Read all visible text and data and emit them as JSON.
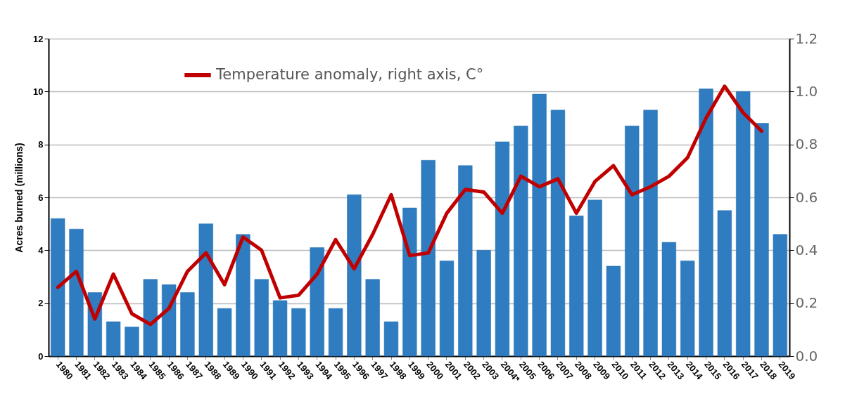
{
  "chart_data": {
    "type": "bar",
    "ylabel": "Acres burned (millions)",
    "categories": [
      "1980",
      "1981",
      "1982",
      "1983",
      "1984",
      "1985",
      "1986",
      "1987",
      "1988",
      "1989",
      "1990",
      "1991",
      "1992",
      "1993",
      "1994",
      "1995",
      "1996",
      "1997",
      "1998",
      "1999",
      "2000",
      "2001",
      "2002",
      "2003",
      "2004*",
      "2005",
      "2006",
      "2007",
      "2008",
      "2009",
      "2010",
      "2011",
      "2012",
      "2013",
      "2014",
      "2015",
      "2016",
      "2017",
      "2018",
      "2019"
    ],
    "series": [
      {
        "color": "#2f7dc0",
        "values": [
          5.2,
          4.8,
          2.4,
          1.3,
          1.1,
          2.9,
          2.7,
          2.4,
          5.0,
          1.8,
          4.6,
          2.9,
          2.1,
          1.8,
          4.1,
          1.8,
          6.1,
          2.9,
          1.3,
          5.6,
          7.4,
          3.6,
          7.2,
          4.0,
          8.1,
          8.7,
          9.9,
          9.3,
          5.3,
          5.9,
          3.4,
          8.7,
          9.3,
          4.3,
          3.6,
          10.1,
          5.5,
          10.0,
          8.8,
          4.6
        ]
      },
      {
        "type": "line",
        "axis": "y2",
        "name": "Temperature anomaly, right axis, C°",
        "color": "#c00000",
        "values": [
          0.26,
          0.32,
          0.14,
          0.31,
          0.16,
          0.12,
          0.18,
          0.32,
          0.39,
          0.27,
          0.45,
          0.4,
          0.22,
          0.23,
          0.31,
          0.44,
          0.33,
          0.46,
          0.61,
          0.38,
          0.39,
          0.54,
          0.63,
          0.62,
          0.54,
          0.68,
          0.64,
          0.67,
          0.54,
          0.66,
          0.72,
          0.61,
          0.64,
          0.68,
          0.75,
          0.9,
          1.02,
          0.92,
          0.85,
          null
        ]
      }
    ],
    "ylim": [
      0,
      12
    ],
    "yticks": [
      0,
      2,
      4,
      6,
      8,
      10,
      12
    ],
    "y2lim": [
      0,
      1.2
    ],
    "y2ticks": [
      {
        "value": 0,
        "label": "0.0"
      },
      {
        "value": 0.2,
        "label": "0.2"
      },
      {
        "value": 0.4,
        "label": "0.4"
      },
      {
        "value": 0.6,
        "label": "0.6"
      },
      {
        "value": 0.8,
        "label": "0.8"
      },
      {
        "value": 1,
        "label": "1.0"
      },
      {
        "value": 1.2,
        "label": "1.2"
      }
    ],
    "grid": "y",
    "legend": "top",
    "marker": "none",
    "line_style": "solid"
  }
}
